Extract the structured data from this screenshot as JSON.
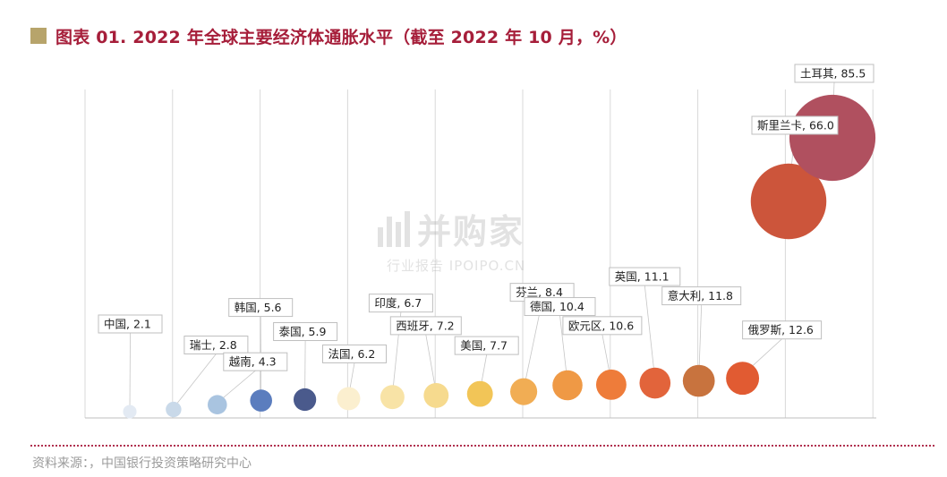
{
  "title": {
    "text": "图表 01. 2022 年全球主要经济体通胀水平（截至 2022 年 10 月，%）",
    "accent_color": "#a61e3a",
    "square_color": "#b7a46b"
  },
  "source": "资料来源：，中国银行投资策略研究中心",
  "watermark": {
    "main": "并购家",
    "sub": "行业报告 IPOIPO.CN"
  },
  "chart_data": {
    "type": "bubble",
    "title": "",
    "xlabel": "",
    "ylabel": "",
    "grid": true,
    "legend": "none",
    "size_encodes": "value",
    "label_format": "{name}, {value}",
    "ylim": [
      0,
      90
    ],
    "points": [
      {
        "name": "中国",
        "value": 2.1,
        "color": "#e3eaf3"
      },
      {
        "name": "瑞士",
        "value": 2.8,
        "color": "#c9d9e9"
      },
      {
        "name": "越南",
        "value": 4.3,
        "color": "#a9c4e0"
      },
      {
        "name": "韩国",
        "value": 5.6,
        "color": "#5b7dbe"
      },
      {
        "name": "泰国",
        "value": 5.9,
        "color": "#4a5a8c"
      },
      {
        "name": "法国",
        "value": 6.2,
        "color": "#fbefcf"
      },
      {
        "name": "印度",
        "value": 6.7,
        "color": "#f8e3a6"
      },
      {
        "name": "西班牙",
        "value": 7.2,
        "color": "#f6da8e"
      },
      {
        "name": "美国",
        "value": 7.7,
        "color": "#f2c557"
      },
      {
        "name": "芬兰",
        "value": 8.4,
        "color": "#f1ad54"
      },
      {
        "name": "德国",
        "value": 10.4,
        "color": "#ef9945"
      },
      {
        "name": "欧元区",
        "value": 10.6,
        "color": "#ee7c3a"
      },
      {
        "name": "英国",
        "value": 11.1,
        "color": "#e2643b"
      },
      {
        "name": "意大利",
        "value": 11.8,
        "color": "#c8733e"
      },
      {
        "name": "俄罗斯",
        "value": 12.6,
        "color": "#e15b32"
      },
      {
        "name": "斯里兰卡",
        "value": 66.0,
        "color": "#cc553b"
      },
      {
        "name": "土耳其",
        "value": 85.5,
        "color": "#b0505f"
      }
    ]
  }
}
